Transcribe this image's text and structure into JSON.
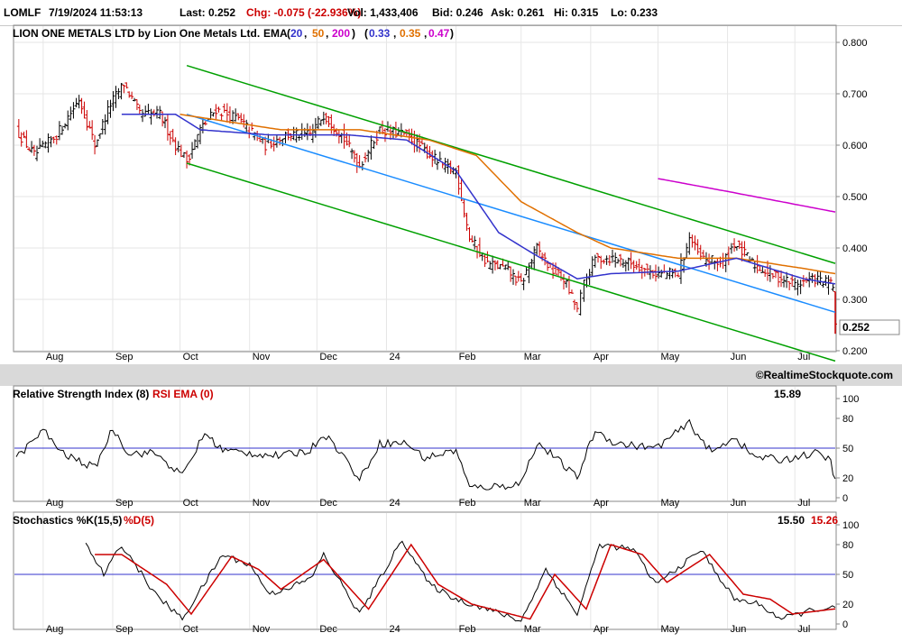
{
  "header": {
    "symbol": "LOMLF",
    "datetime": "7/19/2024 11:53:13",
    "last": "Last: 0.252",
    "chg": "Chg: -0.075 (-22.936%)",
    "vol": "Vol: 1,433,406",
    "bid": "Bid: 0.246",
    "ask": "Ask: 0.261",
    "hi": "Hi: 0.315",
    "lo": "Lo: 0.233"
  },
  "main_panel": {
    "title": "LION ONE METALS LTD by Lion One Metals Ltd.",
    "ema_label": "EMA",
    "ema_periods": [
      "20",
      "50",
      "200"
    ],
    "ema_values": [
      "0.33",
      "0.35",
      "0.47"
    ],
    "price_tag": "0.252",
    "copyright": "©RealtimeStockquote.com"
  },
  "rsi_panel": {
    "title": "Relative Strength Index (8)",
    "ema_label": "RSI EMA (0)",
    "value": "15.89"
  },
  "stoch_panel": {
    "title": "Stochastics %K(15,5)",
    "d_label": "%D(5)",
    "k_value": "15.50",
    "d_value": "15.26"
  },
  "colors": {
    "ema20": "#3333cc",
    "ema50": "#e07000",
    "ema200": "#cc00cc",
    "up_bar": "#000000",
    "down_bar": "#cc0000",
    "channel": "#00a000",
    "midline": "#1a8cff",
    "ref_line": "#3333cc"
  },
  "chart_data": [
    {
      "type": "line",
      "name": "price",
      "x_ticks": [
        "Aug",
        "Sep",
        "Oct",
        "Nov",
        "Dec",
        "24",
        "Feb",
        "Mar",
        "Apr",
        "May",
        "Jun",
        "Jul"
      ],
      "y_ticks": [
        "0.800",
        "0.700",
        "0.600",
        "0.500",
        "0.400",
        "0.300",
        "0.200"
      ],
      "ylim": [
        0.2,
        0.8
      ],
      "close_keypoints": [
        {
          "x": "2023-07-20",
          "y": 0.63
        },
        {
          "x": "2023-07-28",
          "y": 0.58
        },
        {
          "x": "2023-08-07",
          "y": 0.62
        },
        {
          "x": "2023-08-17",
          "y": 0.69
        },
        {
          "x": "2023-08-24",
          "y": 0.6
        },
        {
          "x": "2023-08-31",
          "y": 0.68
        },
        {
          "x": "2023-09-06",
          "y": 0.72
        },
        {
          "x": "2023-09-13",
          "y": 0.66
        },
        {
          "x": "2023-09-22",
          "y": 0.66
        },
        {
          "x": "2023-09-29",
          "y": 0.6
        },
        {
          "x": "2023-10-04",
          "y": 0.57
        },
        {
          "x": "2023-10-10",
          "y": 0.63
        },
        {
          "x": "2023-10-17",
          "y": 0.67
        },
        {
          "x": "2023-10-27",
          "y": 0.65
        },
        {
          "x": "2023-11-08",
          "y": 0.6
        },
        {
          "x": "2023-11-17",
          "y": 0.62
        },
        {
          "x": "2023-11-28",
          "y": 0.62
        },
        {
          "x": "2023-12-04",
          "y": 0.66
        },
        {
          "x": "2023-12-12",
          "y": 0.62
        },
        {
          "x": "2023-12-20",
          "y": 0.56
        },
        {
          "x": "2023-12-29",
          "y": 0.63
        },
        {
          "x": "2024-01-10",
          "y": 0.62
        },
        {
          "x": "2024-01-18",
          "y": 0.59
        },
        {
          "x": "2024-01-26",
          "y": 0.56
        },
        {
          "x": "2024-02-01",
          "y": 0.55
        },
        {
          "x": "2024-02-07",
          "y": 0.42
        },
        {
          "x": "2024-02-15",
          "y": 0.37
        },
        {
          "x": "2024-02-23",
          "y": 0.36
        },
        {
          "x": "2024-03-01",
          "y": 0.33
        },
        {
          "x": "2024-03-08",
          "y": 0.4
        },
        {
          "x": "2024-03-14",
          "y": 0.36
        },
        {
          "x": "2024-03-20",
          "y": 0.34
        },
        {
          "x": "2024-03-26",
          "y": 0.28
        },
        {
          "x": "2024-03-29",
          "y": 0.33
        },
        {
          "x": "2024-04-03",
          "y": 0.38
        },
        {
          "x": "2024-04-12",
          "y": 0.38
        },
        {
          "x": "2024-04-19",
          "y": 0.37
        },
        {
          "x": "2024-04-30",
          "y": 0.35
        },
        {
          "x": "2024-05-10",
          "y": 0.35
        },
        {
          "x": "2024-05-15",
          "y": 0.42
        },
        {
          "x": "2024-05-20",
          "y": 0.38
        },
        {
          "x": "2024-05-30",
          "y": 0.37
        },
        {
          "x": "2024-06-04",
          "y": 0.41
        },
        {
          "x": "2024-06-12",
          "y": 0.37
        },
        {
          "x": "2024-06-20",
          "y": 0.35
        },
        {
          "x": "2024-07-01",
          "y": 0.33
        },
        {
          "x": "2024-07-10",
          "y": 0.34
        },
        {
          "x": "2024-07-16",
          "y": 0.33
        },
        {
          "x": "2024-07-18",
          "y": 0.327
        },
        {
          "x": "2024-07-19",
          "y": 0.252
        }
      ],
      "last_bar": {
        "x": "2024-07-19",
        "open": 0.315,
        "high": 0.315,
        "low": 0.233,
        "close": 0.252
      },
      "ema20_keypoints": [
        {
          "x": "2023-09-05",
          "y": 0.66
        },
        {
          "x": "2023-09-29",
          "y": 0.66
        },
        {
          "x": "2023-10-10",
          "y": 0.63
        },
        {
          "x": "2023-11-10",
          "y": 0.62
        },
        {
          "x": "2023-12-15",
          "y": 0.62
        },
        {
          "x": "2024-01-10",
          "y": 0.61
        },
        {
          "x": "2024-02-01",
          "y": 0.55
        },
        {
          "x": "2024-02-20",
          "y": 0.43
        },
        {
          "x": "2024-03-06",
          "y": 0.39
        },
        {
          "x": "2024-03-26",
          "y": 0.34
        },
        {
          "x": "2024-04-10",
          "y": 0.35
        },
        {
          "x": "2024-05-10",
          "y": 0.355
        },
        {
          "x": "2024-06-05",
          "y": 0.38
        },
        {
          "x": "2024-07-05",
          "y": 0.34
        },
        {
          "x": "2024-07-19",
          "y": 0.33
        }
      ],
      "ema50_keypoints": [
        {
          "x": "2023-10-01",
          "y": 0.66
        },
        {
          "x": "2023-11-15",
          "y": 0.63
        },
        {
          "x": "2023-12-20",
          "y": 0.63
        },
        {
          "x": "2024-01-20",
          "y": 0.61
        },
        {
          "x": "2024-02-10",
          "y": 0.58
        },
        {
          "x": "2024-03-01",
          "y": 0.49
        },
        {
          "x": "2024-03-26",
          "y": 0.43
        },
        {
          "x": "2024-04-10",
          "y": 0.4
        },
        {
          "x": "2024-05-10",
          "y": 0.38
        },
        {
          "x": "2024-06-05",
          "y": 0.38
        },
        {
          "x": "2024-07-05",
          "y": 0.36
        },
        {
          "x": "2024-07-19",
          "y": 0.35
        }
      ],
      "ema200_keypoints": [
        {
          "x": "2024-05-01",
          "y": 0.535
        },
        {
          "x": "2024-06-01",
          "y": 0.51
        },
        {
          "x": "2024-07-19",
          "y": 0.47
        }
      ],
      "channel_upper": [
        {
          "x": "2023-10-04",
          "y": 0.755
        },
        {
          "x": "2024-07-19",
          "y": 0.37
        }
      ],
      "channel_mid": [
        {
          "x": "2023-10-04",
          "y": 0.66
        },
        {
          "x": "2024-07-19",
          "y": 0.275
        }
      ],
      "channel_lower": [
        {
          "x": "2023-10-04",
          "y": 0.565
        },
        {
          "x": "2024-07-19",
          "y": 0.18
        }
      ]
    },
    {
      "type": "line",
      "name": "rsi",
      "y_ticks": [
        "100",
        "80",
        "50",
        "20",
        "0"
      ],
      "ylim": [
        0,
        100
      ],
      "reference_line": 50,
      "keypoints": [
        {
          "x": "2023-07-20",
          "y": 40
        },
        {
          "x": "2023-08-01",
          "y": 68
        },
        {
          "x": "2023-08-10",
          "y": 44
        },
        {
          "x": "2023-08-24",
          "y": 30
        },
        {
          "x": "2023-09-01",
          "y": 70
        },
        {
          "x": "2023-09-08",
          "y": 45
        },
        {
          "x": "2023-09-20",
          "y": 45
        },
        {
          "x": "2023-10-02",
          "y": 22
        },
        {
          "x": "2023-10-12",
          "y": 65
        },
        {
          "x": "2023-10-20",
          "y": 48
        },
        {
          "x": "2023-11-01",
          "y": 45
        },
        {
          "x": "2023-11-15",
          "y": 42
        },
        {
          "x": "2023-11-28",
          "y": 48
        },
        {
          "x": "2023-12-04",
          "y": 65
        },
        {
          "x": "2023-12-12",
          "y": 45
        },
        {
          "x": "2023-12-20",
          "y": 18
        },
        {
          "x": "2023-12-29",
          "y": 55
        },
        {
          "x": "2024-01-10",
          "y": 55
        },
        {
          "x": "2024-01-18",
          "y": 40
        },
        {
          "x": "2024-02-01",
          "y": 48
        },
        {
          "x": "2024-02-07",
          "y": 10
        },
        {
          "x": "2024-02-23",
          "y": 12
        },
        {
          "x": "2024-03-01",
          "y": 15
        },
        {
          "x": "2024-03-08",
          "y": 55
        },
        {
          "x": "2024-03-14",
          "y": 45
        },
        {
          "x": "2024-03-26",
          "y": 20
        },
        {
          "x": "2024-04-03",
          "y": 68
        },
        {
          "x": "2024-04-12",
          "y": 55
        },
        {
          "x": "2024-04-30",
          "y": 50
        },
        {
          "x": "2024-05-15",
          "y": 75
        },
        {
          "x": "2024-05-25",
          "y": 45
        },
        {
          "x": "2024-06-04",
          "y": 62
        },
        {
          "x": "2024-06-12",
          "y": 42
        },
        {
          "x": "2024-06-25",
          "y": 38
        },
        {
          "x": "2024-07-10",
          "y": 45
        },
        {
          "x": "2024-07-17",
          "y": 38
        },
        {
          "x": "2024-07-19",
          "y": 15.89
        }
      ]
    },
    {
      "type": "line",
      "name": "stochastics",
      "y_ticks": [
        "100",
        "80",
        "50",
        "20",
        "0"
      ],
      "ylim": [
        0,
        100
      ],
      "reference_line": 50,
      "k_keypoints": [
        {
          "x": "2023-08-20",
          "y": 80
        },
        {
          "x": "2023-08-28",
          "y": 50
        },
        {
          "x": "2023-09-05",
          "y": 80
        },
        {
          "x": "2023-09-20",
          "y": 30
        },
        {
          "x": "2023-10-02",
          "y": 5
        },
        {
          "x": "2023-10-20",
          "y": 70
        },
        {
          "x": "2023-11-01",
          "y": 60
        },
        {
          "x": "2023-11-10",
          "y": 30
        },
        {
          "x": "2023-11-28",
          "y": 45
        },
        {
          "x": "2023-12-04",
          "y": 70
        },
        {
          "x": "2023-12-20",
          "y": 10
        },
        {
          "x": "2024-01-08",
          "y": 85
        },
        {
          "x": "2024-01-20",
          "y": 40
        },
        {
          "x": "2024-02-01",
          "y": 25
        },
        {
          "x": "2024-02-15",
          "y": 15
        },
        {
          "x": "2024-03-01",
          "y": 3
        },
        {
          "x": "2024-03-12",
          "y": 55
        },
        {
          "x": "2024-03-26",
          "y": 10
        },
        {
          "x": "2024-04-05",
          "y": 80
        },
        {
          "x": "2024-04-20",
          "y": 75
        },
        {
          "x": "2024-04-30",
          "y": 40
        },
        {
          "x": "2024-05-15",
          "y": 65
        },
        {
          "x": "2024-05-20",
          "y": 75
        },
        {
          "x": "2024-06-04",
          "y": 25
        },
        {
          "x": "2024-06-15",
          "y": 20
        },
        {
          "x": "2024-06-25",
          "y": 5
        },
        {
          "x": "2024-07-10",
          "y": 15
        },
        {
          "x": "2024-07-19",
          "y": 15.5
        }
      ],
      "d_keypoints": [
        {
          "x": "2023-08-24",
          "y": 70
        },
        {
          "x": "2023-09-05",
          "y": 70
        },
        {
          "x": "2023-09-25",
          "y": 40
        },
        {
          "x": "2023-10-06",
          "y": 10
        },
        {
          "x": "2023-10-24",
          "y": 68
        },
        {
          "x": "2023-11-05",
          "y": 55
        },
        {
          "x": "2023-11-15",
          "y": 35
        },
        {
          "x": "2023-12-04",
          "y": 65
        },
        {
          "x": "2023-12-24",
          "y": 15
        },
        {
          "x": "2024-01-12",
          "y": 80
        },
        {
          "x": "2024-01-24",
          "y": 40
        },
        {
          "x": "2024-02-08",
          "y": 20
        },
        {
          "x": "2024-03-05",
          "y": 5
        },
        {
          "x": "2024-03-16",
          "y": 50
        },
        {
          "x": "2024-03-30",
          "y": 15
        },
        {
          "x": "2024-04-10",
          "y": 80
        },
        {
          "x": "2024-04-24",
          "y": 70
        },
        {
          "x": "2024-05-05",
          "y": 42
        },
        {
          "x": "2024-05-24",
          "y": 70
        },
        {
          "x": "2024-06-08",
          "y": 30
        },
        {
          "x": "2024-06-20",
          "y": 25
        },
        {
          "x": "2024-06-30",
          "y": 10
        },
        {
          "x": "2024-07-19",
          "y": 15.26
        }
      ]
    }
  ]
}
